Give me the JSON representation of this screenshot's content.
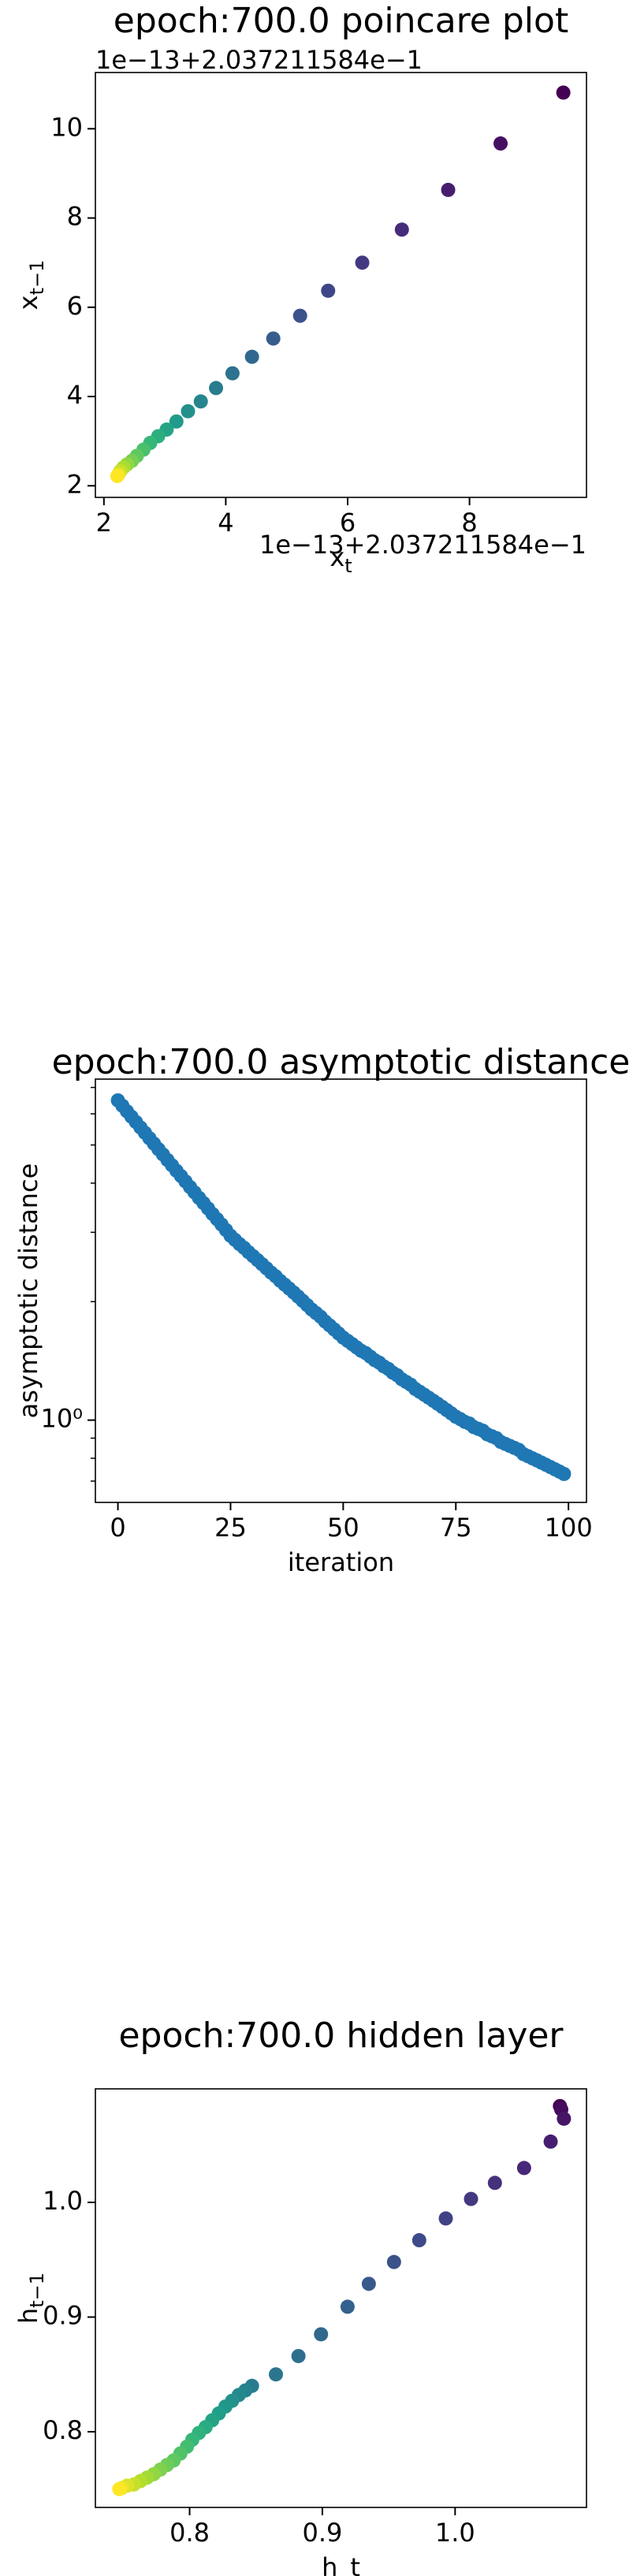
{
  "chart_data": [
    {
      "type": "scatter",
      "title": "epoch:700.0 poincare plot",
      "xlabel": "x",
      "xlabel_sub": "t",
      "ylabel": "x",
      "ylabel_sub": "t−1",
      "x_offset_text": "1e−13+2.037211584e−1",
      "y_offset_text": "1e−13+2.037211584e−1",
      "colormap": "viridis",
      "x": [
        9.54,
        8.51,
        7.65,
        6.89,
        6.24,
        5.68,
        5.22,
        4.78,
        4.43,
        4.11,
        3.84,
        3.59,
        3.38,
        3.19,
        3.03,
        2.89,
        2.76,
        2.65,
        2.54,
        2.46,
        2.38,
        2.32,
        2.27,
        2.24,
        2.22
      ],
      "values": [
        10.81,
        9.67,
        8.63,
        7.74,
        7.0,
        6.37,
        5.81,
        5.3,
        4.89,
        4.52,
        4.19,
        3.89,
        3.67,
        3.44,
        3.26,
        3.11,
        2.96,
        2.81,
        2.67,
        2.56,
        2.48,
        2.41,
        2.33,
        2.26,
        2.22
      ],
      "xlim": [
        1.86,
        9.92
      ],
      "ylim": [
        1.74,
        11.26
      ],
      "xticks": [
        2,
        4,
        6,
        8
      ],
      "yticks": [
        2,
        4,
        6,
        8,
        10
      ]
    },
    {
      "type": "scatter",
      "title": "epoch:700.0 asymptotic distance",
      "xlabel": "iteration",
      "ylabel": "asymptotic distance",
      "color": "#1f77b4",
      "log_y": true,
      "x": [
        0,
        1,
        2,
        3,
        4,
        5,
        6,
        7,
        8,
        9,
        10,
        11,
        12,
        13,
        14,
        15,
        16,
        17,
        18,
        19,
        20,
        21,
        22,
        23,
        24,
        25,
        26,
        27,
        28,
        29,
        30,
        31,
        32,
        33,
        34,
        35,
        36,
        37,
        38,
        39,
        40,
        41,
        42,
        43,
        44,
        45,
        46,
        47,
        48,
        49,
        50,
        51,
        52,
        53,
        54,
        55,
        56,
        57,
        58,
        59,
        60,
        61,
        62,
        63,
        64,
        65,
        66,
        67,
        68,
        69,
        70,
        71,
        72,
        73,
        74,
        75,
        76,
        77,
        78,
        79,
        80,
        81,
        82,
        83,
        84,
        85,
        86,
        87,
        88,
        89,
        90,
        91,
        92,
        93,
        94,
        95,
        96,
        97,
        98,
        99
      ],
      "values": [
        6.49,
        6.29,
        6.09,
        5.9,
        5.72,
        5.54,
        5.37,
        5.2,
        5.04,
        4.88,
        4.73,
        4.58,
        4.44,
        4.3,
        4.17,
        4.04,
        3.91,
        3.79,
        3.67,
        3.56,
        3.45,
        3.34,
        3.24,
        3.14,
        3.04,
        2.94,
        2.87,
        2.8,
        2.74,
        2.67,
        2.61,
        2.55,
        2.49,
        2.43,
        2.37,
        2.32,
        2.26,
        2.21,
        2.16,
        2.11,
        2.06,
        2.01,
        1.96,
        1.91,
        1.87,
        1.83,
        1.78,
        1.74,
        1.7,
        1.66,
        1.62,
        1.59,
        1.56,
        1.53,
        1.5,
        1.48,
        1.45,
        1.42,
        1.4,
        1.37,
        1.35,
        1.32,
        1.3,
        1.27,
        1.25,
        1.23,
        1.2,
        1.18,
        1.16,
        1.14,
        1.12,
        1.1,
        1.08,
        1.06,
        1.04,
        1.02,
        1.006,
        0.99,
        0.98,
        0.96,
        0.95,
        0.94,
        0.92,
        0.91,
        0.9,
        0.88,
        0.87,
        0.86,
        0.85,
        0.84,
        0.82,
        0.81,
        0.8,
        0.79,
        0.78,
        0.77,
        0.76,
        0.75,
        0.74,
        0.73
      ],
      "xlim": [
        -5,
        104
      ],
      "ylim": [
        0.618,
        7.35
      ],
      "xticks": [
        0,
        25,
        50,
        75,
        100
      ],
      "yticks": [
        {
          "value": 1,
          "label": "10⁰"
        }
      ],
      "yminorticks": [
        0.7,
        0.8,
        0.9,
        2,
        3,
        4,
        5,
        6,
        7
      ]
    },
    {
      "type": "scatter",
      "title": "epoch:700.0 hidden layer",
      "xlabel": "h_t",
      "ylabel": "h",
      "ylabel_sub": "t−1",
      "colormap": "viridis",
      "x": [
        1.079,
        1.08,
        1.082,
        1.072,
        1.052,
        1.03,
        1.012,
        0.993,
        0.973,
        0.954,
        0.935,
        0.919,
        0.899,
        0.882,
        0.865,
        0.847,
        0.842,
        0.837,
        0.832,
        0.827,
        0.822,
        0.817,
        0.812,
        0.807,
        0.802,
        0.798,
        0.793,
        0.788,
        0.783,
        0.778,
        0.773,
        0.768,
        0.763,
        0.758,
        0.753,
        0.749,
        0.747
      ],
      "values": [
        1.084,
        1.081,
        1.073,
        1.053,
        1.03,
        1.017,
        1.003,
        0.986,
        0.967,
        0.948,
        0.929,
        0.909,
        0.885,
        0.866,
        0.85,
        0.84,
        0.836,
        0.832,
        0.827,
        0.822,
        0.816,
        0.81,
        0.804,
        0.799,
        0.793,
        0.787,
        0.781,
        0.775,
        0.771,
        0.767,
        0.763,
        0.76,
        0.757,
        0.754,
        0.753,
        0.751,
        0.75
      ],
      "xlim": [
        0.729,
        1.099
      ],
      "ylim": [
        0.734,
        1.099
      ],
      "xticks": [
        0.8,
        0.9,
        {
          "value": 1,
          "label": "1.0"
        }
      ],
      "yticks": [
        0.8,
        0.9,
        {
          "value": 1,
          "label": "1.0"
        }
      ]
    }
  ]
}
